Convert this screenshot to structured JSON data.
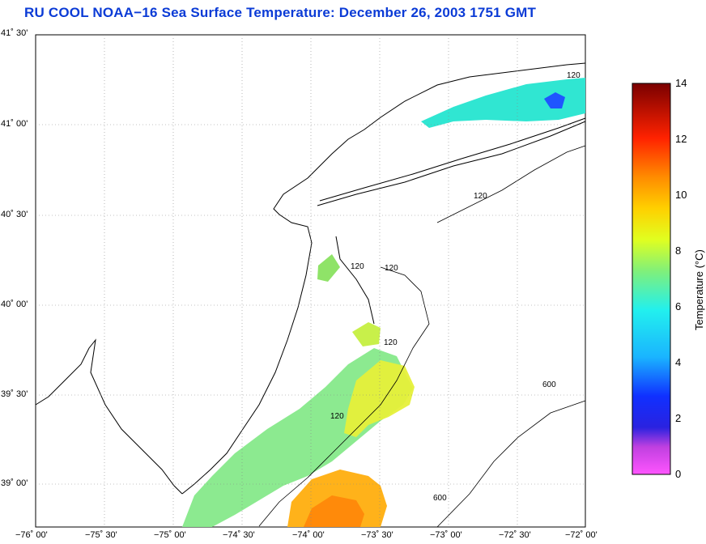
{
  "title": "RU COOL  NOAA−16  Sea Surface Temperature:  December 26, 2003 1751 GMT",
  "lat_labels": [
    "41˚ 30'",
    "41˚ 00'",
    "40˚ 30'",
    "40˚ 00'",
    "39˚ 30'",
    "39˚ 00'"
  ],
  "lon_labels": [
    "−76˚ 00'",
    "−75˚ 30'",
    "−75˚ 00'",
    "−74˚ 30'",
    "−74˚ 00'",
    "−73˚ 30'",
    "−73˚ 00'",
    "−72˚ 30'",
    "−72˚ 00'"
  ],
  "colorbar": {
    "title": "Temperature (°C)",
    "ticks": [
      "14",
      "12",
      "10",
      "8",
      "6",
      "4",
      "2",
      "0"
    ],
    "range": [
      0,
      14
    ],
    "stops": [
      "#ff55ff",
      "#8a3bd0",
      "#1f22e0",
      "#1ab4ff",
      "#22f0ee",
      "#b0f060",
      "#ffff00",
      "#ff9a00",
      "#ff2200",
      "#7a0000"
    ]
  },
  "isobaths": [
    "120",
    "120",
    "120",
    "120",
    "120",
    "120",
    "600",
    "600"
  ]
}
